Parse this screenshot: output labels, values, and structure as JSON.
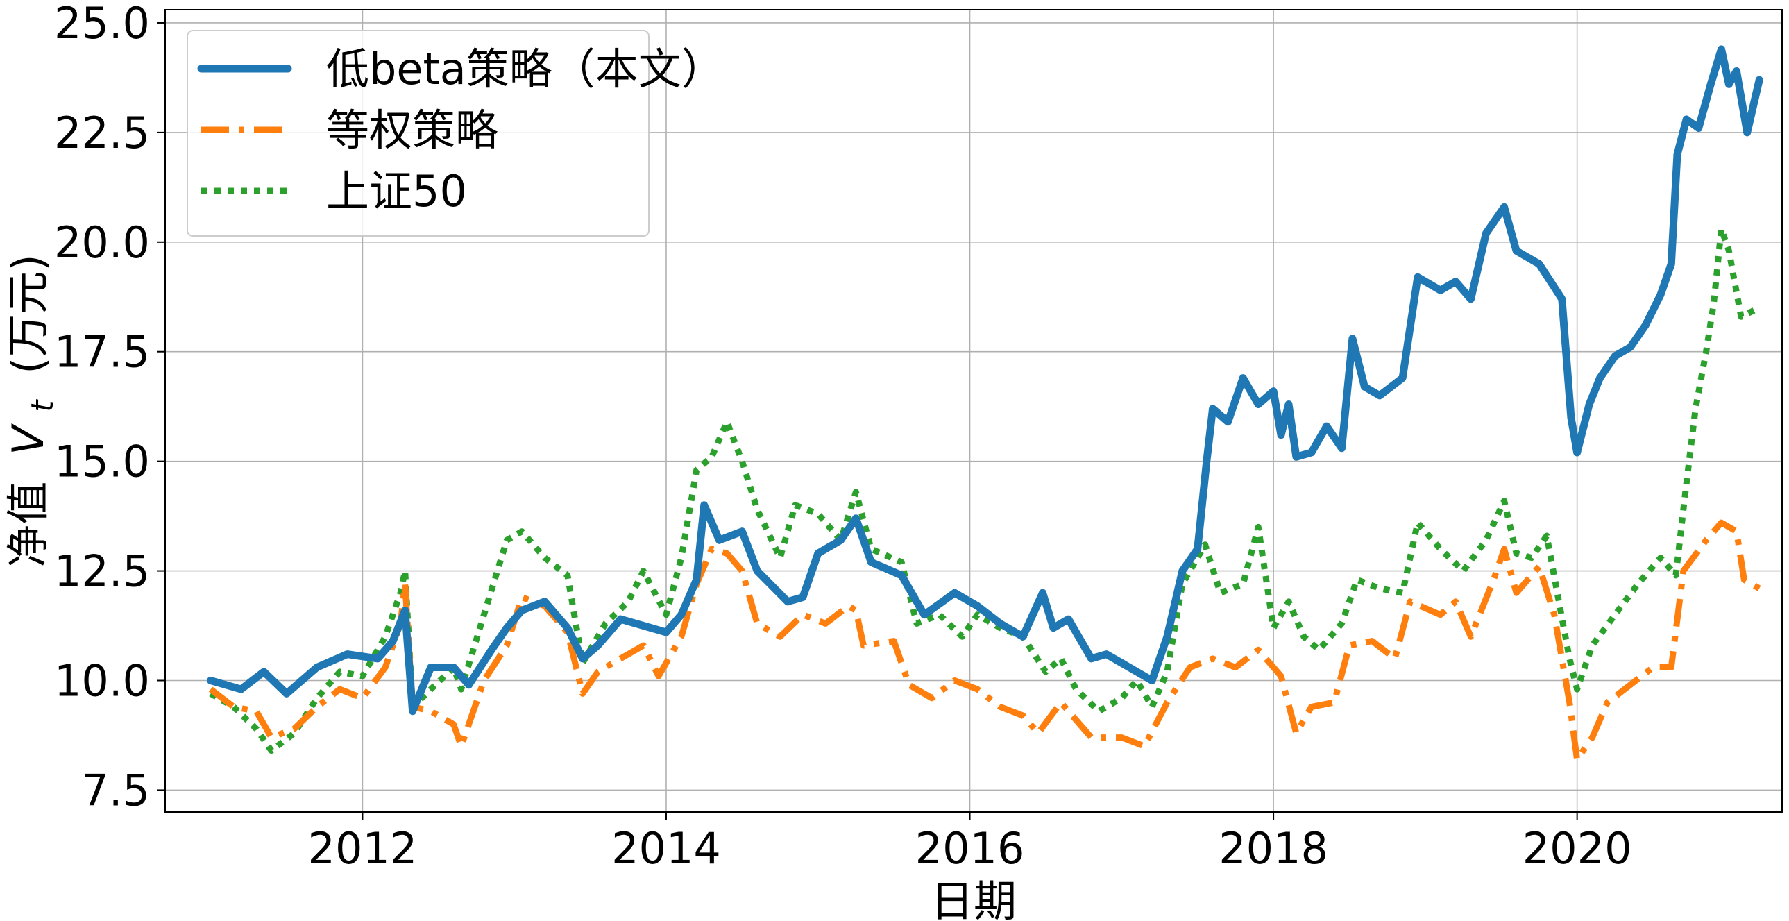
{
  "chart_data": {
    "type": "line",
    "xlabel": "日期",
    "ylabel_prefix": "净值",
    "ylabel_math": "V",
    "ylabel_sub": "t",
    "ylabel_unit": "(万元)",
    "xlim": [
      2010.7,
      2021.35
    ],
    "ylim": [
      7.0,
      25.3
    ],
    "xticks": [
      2012,
      2014,
      2016,
      2018,
      2020
    ],
    "yticks": [
      7.5,
      10.0,
      12.5,
      15.0,
      17.5,
      20.0,
      22.5,
      25.0
    ],
    "ytick_labels": [
      "7.5",
      "10.0",
      "12.5",
      "15.0",
      "17.5",
      "20.0",
      "22.5",
      "25.0"
    ],
    "grid": true,
    "legend_position": "top-left",
    "series": [
      {
        "name": "低beta策略（本文）",
        "color": "#1f77b4",
        "style": "solid",
        "points": [
          [
            2011.0,
            10.0
          ],
          [
            2011.2,
            9.8
          ],
          [
            2011.35,
            10.2
          ],
          [
            2011.5,
            9.7
          ],
          [
            2011.7,
            10.3
          ],
          [
            2011.9,
            10.6
          ],
          [
            2012.1,
            10.5
          ],
          [
            2012.2,
            10.9
          ],
          [
            2012.28,
            11.6
          ],
          [
            2012.33,
            9.3
          ],
          [
            2012.45,
            10.3
          ],
          [
            2012.6,
            10.3
          ],
          [
            2012.7,
            9.9
          ],
          [
            2012.85,
            10.7
          ],
          [
            2012.95,
            11.2
          ],
          [
            2013.05,
            11.6
          ],
          [
            2013.2,
            11.8
          ],
          [
            2013.35,
            11.2
          ],
          [
            2013.45,
            10.5
          ],
          [
            2013.55,
            10.8
          ],
          [
            2013.7,
            11.4
          ],
          [
            2013.9,
            11.2
          ],
          [
            2014.0,
            11.1
          ],
          [
            2014.1,
            11.5
          ],
          [
            2014.2,
            12.3
          ],
          [
            2014.25,
            14.0
          ],
          [
            2014.35,
            13.2
          ],
          [
            2014.5,
            13.4
          ],
          [
            2014.6,
            12.5
          ],
          [
            2014.8,
            11.8
          ],
          [
            2014.9,
            11.9
          ],
          [
            2015.0,
            12.9
          ],
          [
            2015.15,
            13.2
          ],
          [
            2015.25,
            13.7
          ],
          [
            2015.35,
            12.7
          ],
          [
            2015.55,
            12.4
          ],
          [
            2015.7,
            11.5
          ],
          [
            2015.9,
            12.0
          ],
          [
            2016.05,
            11.7
          ],
          [
            2016.2,
            11.3
          ],
          [
            2016.35,
            11.0
          ],
          [
            2016.48,
            12.0
          ],
          [
            2016.55,
            11.2
          ],
          [
            2016.65,
            11.4
          ],
          [
            2016.8,
            10.5
          ],
          [
            2016.9,
            10.6
          ],
          [
            2017.0,
            10.4
          ],
          [
            2017.1,
            10.2
          ],
          [
            2017.2,
            10.0
          ],
          [
            2017.3,
            11.0
          ],
          [
            2017.4,
            12.5
          ],
          [
            2017.5,
            13.0
          ],
          [
            2017.56,
            15.0
          ],
          [
            2017.6,
            16.2
          ],
          [
            2017.7,
            15.9
          ],
          [
            2017.8,
            16.9
          ],
          [
            2017.9,
            16.3
          ],
          [
            2018.0,
            16.6
          ],
          [
            2018.05,
            15.6
          ],
          [
            2018.1,
            16.3
          ],
          [
            2018.15,
            15.1
          ],
          [
            2018.25,
            15.2
          ],
          [
            2018.35,
            15.8
          ],
          [
            2018.45,
            15.3
          ],
          [
            2018.52,
            17.8
          ],
          [
            2018.6,
            16.7
          ],
          [
            2018.7,
            16.5
          ],
          [
            2018.85,
            16.9
          ],
          [
            2018.95,
            19.2
          ],
          [
            2019.1,
            18.9
          ],
          [
            2019.2,
            19.1
          ],
          [
            2019.3,
            18.7
          ],
          [
            2019.4,
            20.2
          ],
          [
            2019.52,
            20.8
          ],
          [
            2019.6,
            19.8
          ],
          [
            2019.75,
            19.5
          ],
          [
            2019.9,
            18.7
          ],
          [
            2019.96,
            16.0
          ],
          [
            2020.0,
            15.2
          ],
          [
            2020.08,
            16.3
          ],
          [
            2020.15,
            16.9
          ],
          [
            2020.25,
            17.4
          ],
          [
            2020.35,
            17.6
          ],
          [
            2020.45,
            18.1
          ],
          [
            2020.55,
            18.8
          ],
          [
            2020.62,
            19.5
          ],
          [
            2020.66,
            22.0
          ],
          [
            2020.72,
            22.8
          ],
          [
            2020.8,
            22.6
          ],
          [
            2020.88,
            23.6
          ],
          [
            2020.95,
            24.4
          ],
          [
            2021.0,
            23.6
          ],
          [
            2021.05,
            23.9
          ],
          [
            2021.12,
            22.5
          ],
          [
            2021.2,
            23.7
          ]
        ]
      },
      {
        "name": "等权策略",
        "color": "#ff7f0e",
        "style": "dashdot",
        "points": [
          [
            2011.0,
            9.8
          ],
          [
            2011.15,
            9.4
          ],
          [
            2011.3,
            9.3
          ],
          [
            2011.4,
            8.7
          ],
          [
            2011.55,
            8.9
          ],
          [
            2011.7,
            9.4
          ],
          [
            2011.85,
            9.8
          ],
          [
            2012.0,
            9.6
          ],
          [
            2012.15,
            10.3
          ],
          [
            2012.25,
            11.3
          ],
          [
            2012.28,
            12.2
          ],
          [
            2012.33,
            9.4
          ],
          [
            2012.45,
            9.3
          ],
          [
            2012.6,
            9.0
          ],
          [
            2012.65,
            8.5
          ],
          [
            2012.8,
            10.0
          ],
          [
            2012.95,
            10.8
          ],
          [
            2013.05,
            11.9
          ],
          [
            2013.2,
            11.7
          ],
          [
            2013.35,
            11.1
          ],
          [
            2013.45,
            9.7
          ],
          [
            2013.55,
            10.2
          ],
          [
            2013.7,
            10.5
          ],
          [
            2013.85,
            10.8
          ],
          [
            2013.95,
            10.1
          ],
          [
            2014.1,
            11.0
          ],
          [
            2014.2,
            12.2
          ],
          [
            2014.3,
            13.0
          ],
          [
            2014.4,
            12.9
          ],
          [
            2014.5,
            12.5
          ],
          [
            2014.6,
            11.3
          ],
          [
            2014.75,
            11.0
          ],
          [
            2014.9,
            11.5
          ],
          [
            2015.05,
            11.3
          ],
          [
            2015.2,
            11.7
          ],
          [
            2015.25,
            11.6
          ],
          [
            2015.3,
            10.8
          ],
          [
            2015.5,
            10.9
          ],
          [
            2015.6,
            9.9
          ],
          [
            2015.75,
            9.6
          ],
          [
            2015.9,
            10.0
          ],
          [
            2016.05,
            9.8
          ],
          [
            2016.2,
            9.4
          ],
          [
            2016.35,
            9.2
          ],
          [
            2016.45,
            8.8
          ],
          [
            2016.6,
            9.5
          ],
          [
            2016.8,
            8.7
          ],
          [
            2017.0,
            8.7
          ],
          [
            2017.15,
            8.5
          ],
          [
            2017.3,
            9.5
          ],
          [
            2017.45,
            10.3
          ],
          [
            2017.6,
            10.5
          ],
          [
            2017.75,
            10.3
          ],
          [
            2017.9,
            10.7
          ],
          [
            2018.05,
            10.1
          ],
          [
            2018.15,
            8.8
          ],
          [
            2018.25,
            9.4
          ],
          [
            2018.4,
            9.5
          ],
          [
            2018.5,
            10.8
          ],
          [
            2018.65,
            10.9
          ],
          [
            2018.8,
            10.5
          ],
          [
            2018.9,
            11.8
          ],
          [
            2019.1,
            11.5
          ],
          [
            2019.2,
            11.8
          ],
          [
            2019.3,
            11.0
          ],
          [
            2019.45,
            12.3
          ],
          [
            2019.52,
            13.0
          ],
          [
            2019.6,
            12.0
          ],
          [
            2019.75,
            12.6
          ],
          [
            2019.85,
            11.5
          ],
          [
            2019.95,
            9.5
          ],
          [
            2020.0,
            8.2
          ],
          [
            2020.1,
            8.7
          ],
          [
            2020.2,
            9.5
          ],
          [
            2020.35,
            9.9
          ],
          [
            2020.5,
            10.3
          ],
          [
            2020.62,
            10.3
          ],
          [
            2020.7,
            12.5
          ],
          [
            2020.85,
            13.2
          ],
          [
            2020.95,
            13.6
          ],
          [
            2021.05,
            13.4
          ],
          [
            2021.1,
            12.3
          ],
          [
            2021.2,
            12.1
          ]
        ]
      },
      {
        "name": "上证50",
        "color": "#2ca02c",
        "style": "dotted",
        "points": [
          [
            2011.0,
            9.7
          ],
          [
            2011.15,
            9.4
          ],
          [
            2011.3,
            8.9
          ],
          [
            2011.4,
            8.4
          ],
          [
            2011.55,
            8.8
          ],
          [
            2011.7,
            9.6
          ],
          [
            2011.85,
            10.2
          ],
          [
            2012.0,
            10.1
          ],
          [
            2012.15,
            11.0
          ],
          [
            2012.25,
            12.0
          ],
          [
            2012.28,
            12.5
          ],
          [
            2012.33,
            9.4
          ],
          [
            2012.45,
            9.8
          ],
          [
            2012.6,
            10.3
          ],
          [
            2012.65,
            9.8
          ],
          [
            2012.8,
            11.5
          ],
          [
            2012.95,
            13.2
          ],
          [
            2013.05,
            13.4
          ],
          [
            2013.2,
            12.8
          ],
          [
            2013.35,
            12.4
          ],
          [
            2013.45,
            10.4
          ],
          [
            2013.6,
            11.3
          ],
          [
            2013.75,
            11.8
          ],
          [
            2013.85,
            12.5
          ],
          [
            2014.0,
            11.5
          ],
          [
            2014.1,
            12.8
          ],
          [
            2014.2,
            14.8
          ],
          [
            2014.3,
            15.1
          ],
          [
            2014.4,
            15.9
          ],
          [
            2014.5,
            15.0
          ],
          [
            2014.6,
            13.9
          ],
          [
            2014.75,
            12.8
          ],
          [
            2014.85,
            14.0
          ],
          [
            2015.0,
            13.8
          ],
          [
            2015.15,
            13.2
          ],
          [
            2015.25,
            14.3
          ],
          [
            2015.35,
            13.0
          ],
          [
            2015.55,
            12.7
          ],
          [
            2015.65,
            11.3
          ],
          [
            2015.8,
            11.5
          ],
          [
            2015.95,
            11.0
          ],
          [
            2016.05,
            11.5
          ],
          [
            2016.2,
            11.2
          ],
          [
            2016.35,
            11.0
          ],
          [
            2016.5,
            10.2
          ],
          [
            2016.6,
            10.5
          ],
          [
            2016.7,
            9.8
          ],
          [
            2016.85,
            9.3
          ],
          [
            2017.0,
            9.6
          ],
          [
            2017.1,
            10.0
          ],
          [
            2017.2,
            9.4
          ],
          [
            2017.3,
            10.2
          ],
          [
            2017.4,
            12.2
          ],
          [
            2017.55,
            13.1
          ],
          [
            2017.65,
            12.0
          ],
          [
            2017.8,
            12.2
          ],
          [
            2017.9,
            13.5
          ],
          [
            2018.0,
            11.2
          ],
          [
            2018.1,
            11.8
          ],
          [
            2018.2,
            11.0
          ],
          [
            2018.3,
            10.7
          ],
          [
            2018.45,
            11.3
          ],
          [
            2018.55,
            12.3
          ],
          [
            2018.7,
            12.1
          ],
          [
            2018.85,
            12.0
          ],
          [
            2018.95,
            13.6
          ],
          [
            2019.1,
            13.0
          ],
          [
            2019.25,
            12.5
          ],
          [
            2019.4,
            13.2
          ],
          [
            2019.52,
            14.1
          ],
          [
            2019.6,
            12.9
          ],
          [
            2019.7,
            12.8
          ],
          [
            2019.8,
            13.3
          ],
          [
            2019.88,
            11.8
          ],
          [
            2019.95,
            10.5
          ],
          [
            2020.0,
            9.8
          ],
          [
            2020.1,
            10.8
          ],
          [
            2020.25,
            11.5
          ],
          [
            2020.4,
            12.2
          ],
          [
            2020.55,
            12.8
          ],
          [
            2020.65,
            12.4
          ],
          [
            2020.72,
            14.5
          ],
          [
            2020.78,
            16.2
          ],
          [
            2020.85,
            17.5
          ],
          [
            2020.9,
            18.6
          ],
          [
            2020.95,
            20.3
          ],
          [
            2021.0,
            19.8
          ],
          [
            2021.08,
            18.3
          ],
          [
            2021.2,
            18.5
          ]
        ]
      }
    ]
  }
}
